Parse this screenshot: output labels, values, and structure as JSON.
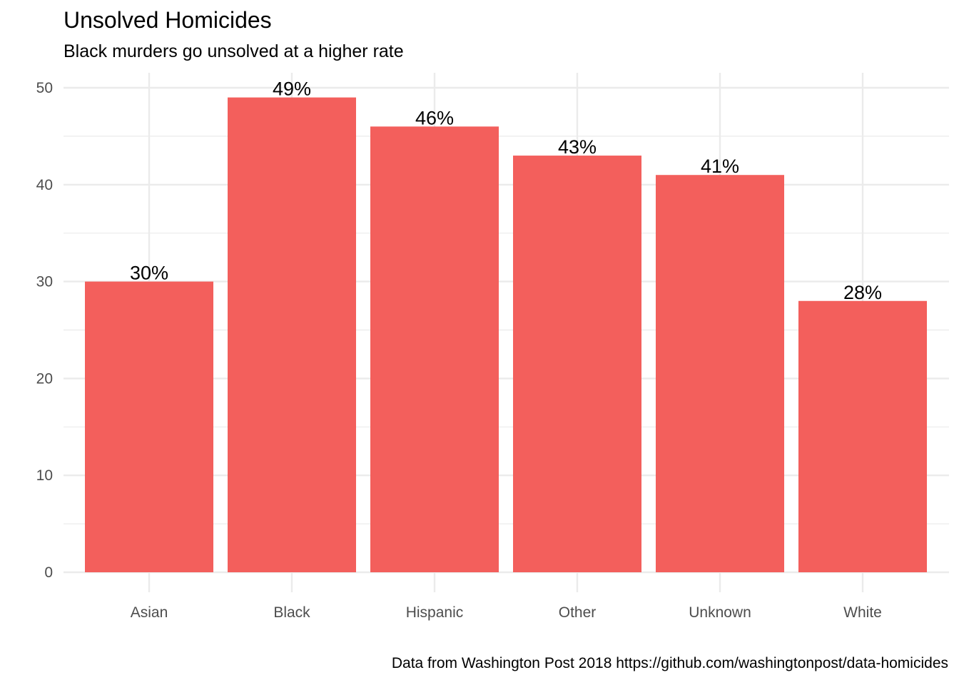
{
  "chart_data": {
    "type": "bar",
    "title": "Unsolved Homicides",
    "subtitle": "Black murders go unsolved at a higher rate",
    "caption": "Data from Washington Post 2018 https://github.com/washingtonpost/data-homicides",
    "categories": [
      "Asian",
      "Black",
      "Hispanic",
      "Other",
      "Unknown",
      "White"
    ],
    "values": [
      30,
      49,
      46,
      43,
      41,
      28
    ],
    "data_labels": [
      "30%",
      "49%",
      "46%",
      "43%",
      "41%",
      "28%"
    ],
    "xlabel": "",
    "ylabel": "",
    "ylim": [
      0,
      50
    ],
    "yticks": [
      0,
      10,
      20,
      30,
      40,
      50
    ],
    "grid": true,
    "legend": "none",
    "colors": {
      "bar": "#F35F5C",
      "grid": "#EBEBEB",
      "tick_text": "#4D4D4D"
    }
  }
}
